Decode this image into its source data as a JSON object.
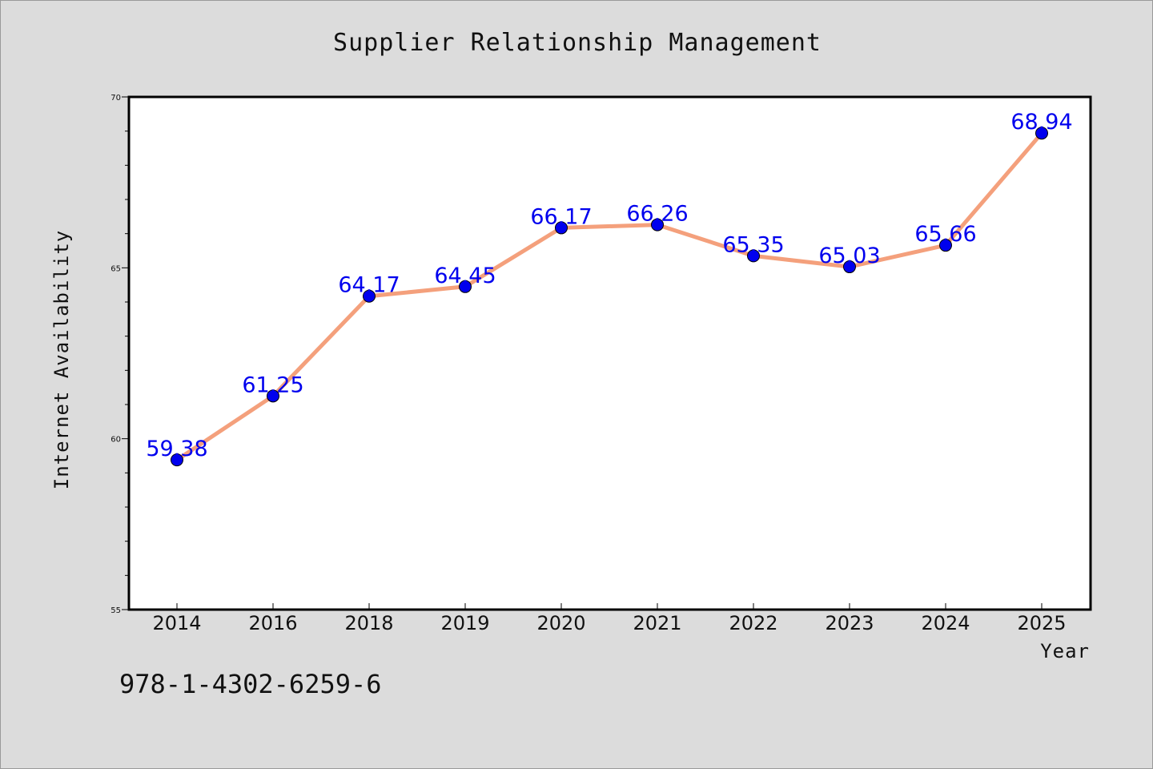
{
  "chart_data": {
    "type": "line",
    "title": "Supplier Relationship Management",
    "xlabel": "Year",
    "ylabel": "Internet Availability",
    "categories": [
      "2014",
      "2016",
      "2018",
      "2019",
      "2020",
      "2021",
      "2022",
      "2023",
      "2024",
      "2025"
    ],
    "series": [
      {
        "values": [
          59.38,
          61.25,
          64.17,
          64.45,
          66.17,
          66.26,
          65.35,
          65.03,
          65.66,
          68.94
        ],
        "data_labels": [
          "59.38",
          "61.25",
          "64.17",
          "64.45",
          "66.17",
          "66.26",
          "65.35",
          "65.03",
          "65.66",
          "68.94"
        ],
        "line_color": "#f4a07c",
        "marker_color": "#0000ee"
      }
    ],
    "ylim": [
      55,
      70
    ],
    "yticks": [
      55,
      60,
      65,
      70
    ],
    "ytick_labels": [
      "55",
      "60",
      "65",
      "70"
    ],
    "grid": false,
    "legend": "none",
    "label_color": "#0000ee"
  },
  "footer": {
    "code": "978-1-4302-6259-6"
  }
}
